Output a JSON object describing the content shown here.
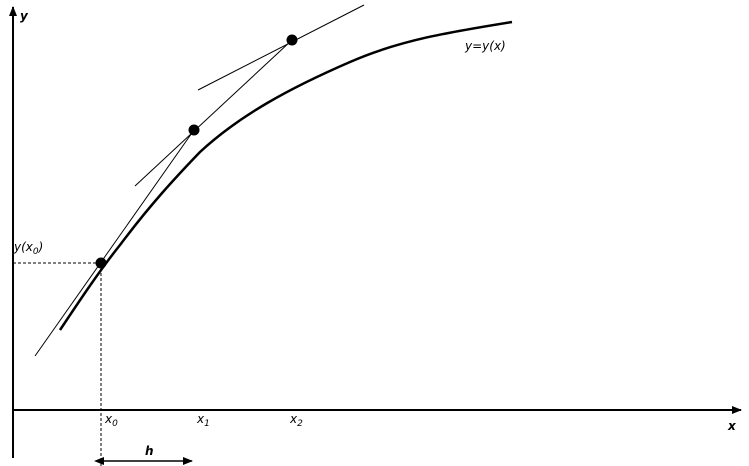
{
  "axes": {
    "y": "y",
    "x": "x"
  },
  "curve_label": "y=y(x)",
  "y0_label": {
    "base": "y(x",
    "sub": "0",
    "end": ")"
  },
  "x_labels": [
    {
      "base": "x",
      "sub": "0"
    },
    {
      "base": "x",
      "sub": "1"
    },
    {
      "base": "x",
      "sub": "2"
    }
  ],
  "step_label": "h"
}
